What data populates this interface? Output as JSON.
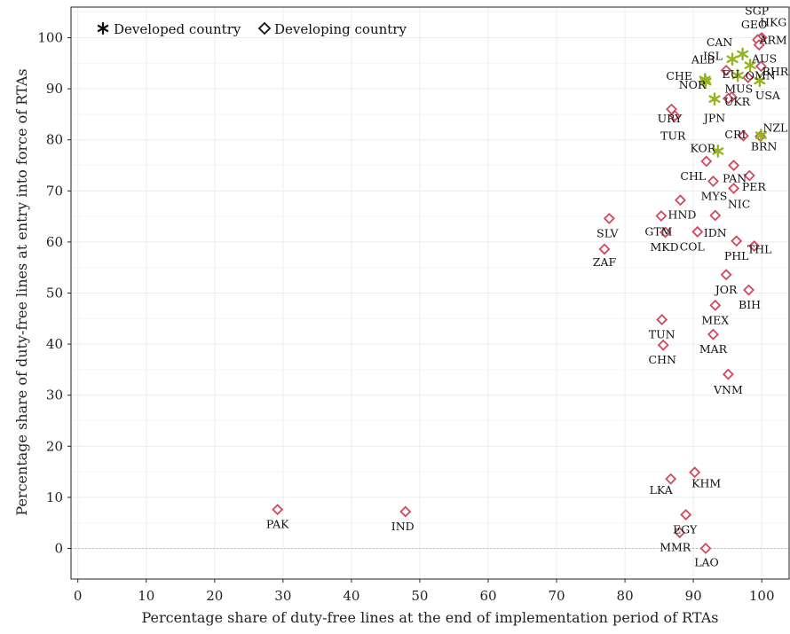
{
  "chart_data": {
    "type": "scatter",
    "title": "",
    "xlabel": "Percentage share of duty-free lines at the end of implementation period of RTAs",
    "ylabel": "Percentage share of duty-free lines at entry into force of RTAs",
    "xlim": [
      -1,
      104
    ],
    "ylim": [
      -6,
      106
    ],
    "xticks": [
      0,
      10,
      20,
      30,
      40,
      50,
      60,
      70,
      80,
      90,
      100
    ],
    "yticks": [
      0,
      10,
      20,
      30,
      40,
      50,
      60,
      70,
      80,
      90,
      100
    ],
    "grid": true,
    "legend_position": "top-left",
    "colors": {
      "developed": "#94b51f",
      "developing": "#cf4a5e"
    },
    "series": [
      {
        "name": "Developed country",
        "marker": "asterisk",
        "points": [
          {
            "label": "CAN",
            "x": 97.2,
            "y": 96.8
          },
          {
            "label": "ISL",
            "x": 95.7,
            "y": 95.8
          },
          {
            "label": "AUS",
            "x": 98.3,
            "y": 94.6
          },
          {
            "label": "USA",
            "x": 99.7,
            "y": 91.6
          },
          {
            "label": "CHE",
            "x": 91.7,
            "y": 91.8
          },
          {
            "label": "NOR",
            "x": 91.8,
            "y": 91.4
          },
          {
            "label": "EU",
            "x": 96.5,
            "y": 92.6
          },
          {
            "label": "JPN",
            "x": 93.1,
            "y": 88.0
          },
          {
            "label": "NZL",
            "x": 99.9,
            "y": 80.9
          },
          {
            "label": "KOR",
            "x": 93.6,
            "y": 77.8
          }
        ]
      },
      {
        "name": "Developing country",
        "marker": "diamond",
        "points": [
          {
            "label": "HKG",
            "x": 100.0,
            "y": 100.0
          },
          {
            "label": "SGP",
            "x": 99.8,
            "y": 99.8
          },
          {
            "label": "GEO",
            "x": 99.4,
            "y": 99.6
          },
          {
            "label": "ARM",
            "x": 99.6,
            "y": 98.6
          },
          {
            "label": "BHR",
            "x": 99.9,
            "y": 94.4
          },
          {
            "label": "ALB",
            "x": 94.8,
            "y": 93.6
          },
          {
            "label": "OMN",
            "x": 98.0,
            "y": 92.2
          },
          {
            "label": "MUS",
            "x": 95.6,
            "y": 88.4
          },
          {
            "label": "UKR",
            "x": 95.1,
            "y": 88.1
          },
          {
            "label": "URY",
            "x": 86.8,
            "y": 86.0
          },
          {
            "label": "TUR",
            "x": 87.3,
            "y": 84.7
          },
          {
            "label": "CRI",
            "x": 97.3,
            "y": 80.8
          },
          {
            "label": "BRN",
            "x": 99.8,
            "y": 80.7
          },
          {
            "label": "CHL",
            "x": 91.9,
            "y": 75.8
          },
          {
            "label": "PAN",
            "x": 95.9,
            "y": 75.0
          },
          {
            "label": "PER",
            "x": 98.2,
            "y": 73.0
          },
          {
            "label": "MYS",
            "x": 92.9,
            "y": 71.9
          },
          {
            "label": "NIC",
            "x": 95.9,
            "y": 70.5
          },
          {
            "label": "HND",
            "x": 88.1,
            "y": 68.2
          },
          {
            "label": "GTM",
            "x": 85.3,
            "y": 65.1
          },
          {
            "label": "IDN",
            "x": 93.2,
            "y": 65.2
          },
          {
            "label": "SLV",
            "x": 77.7,
            "y": 64.6
          },
          {
            "label": "MKD",
            "x": 85.9,
            "y": 61.9
          },
          {
            "label": "COL",
            "x": 90.6,
            "y": 62.0
          },
          {
            "label": "PHL",
            "x": 96.3,
            "y": 60.2
          },
          {
            "label": "THL",
            "x": 98.9,
            "y": 59.2
          },
          {
            "label": "ZAF",
            "x": 77.0,
            "y": 58.6
          },
          {
            "label": "JOR",
            "x": 94.8,
            "y": 53.6
          },
          {
            "label": "BIH",
            "x": 98.1,
            "y": 50.6
          },
          {
            "label": "MEX",
            "x": 93.2,
            "y": 47.6
          },
          {
            "label": "TUN",
            "x": 85.4,
            "y": 44.8
          },
          {
            "label": "MAR",
            "x": 92.9,
            "y": 41.9
          },
          {
            "label": "CHN",
            "x": 85.6,
            "y": 39.8
          },
          {
            "label": "VNM",
            "x": 95.1,
            "y": 34.1
          },
          {
            "label": "KHM",
            "x": 90.2,
            "y": 14.9
          },
          {
            "label": "LKA",
            "x": 86.7,
            "y": 13.6
          },
          {
            "label": "PAK",
            "x": 29.2,
            "y": 7.6
          },
          {
            "label": "IND",
            "x": 47.9,
            "y": 7.2
          },
          {
            "label": "EGY",
            "x": 88.9,
            "y": 6.6
          },
          {
            "label": "MMR",
            "x": 88.0,
            "y": 3.1
          },
          {
            "label": "LAO",
            "x": 91.8,
            "y": 0.0
          }
        ]
      }
    ]
  }
}
